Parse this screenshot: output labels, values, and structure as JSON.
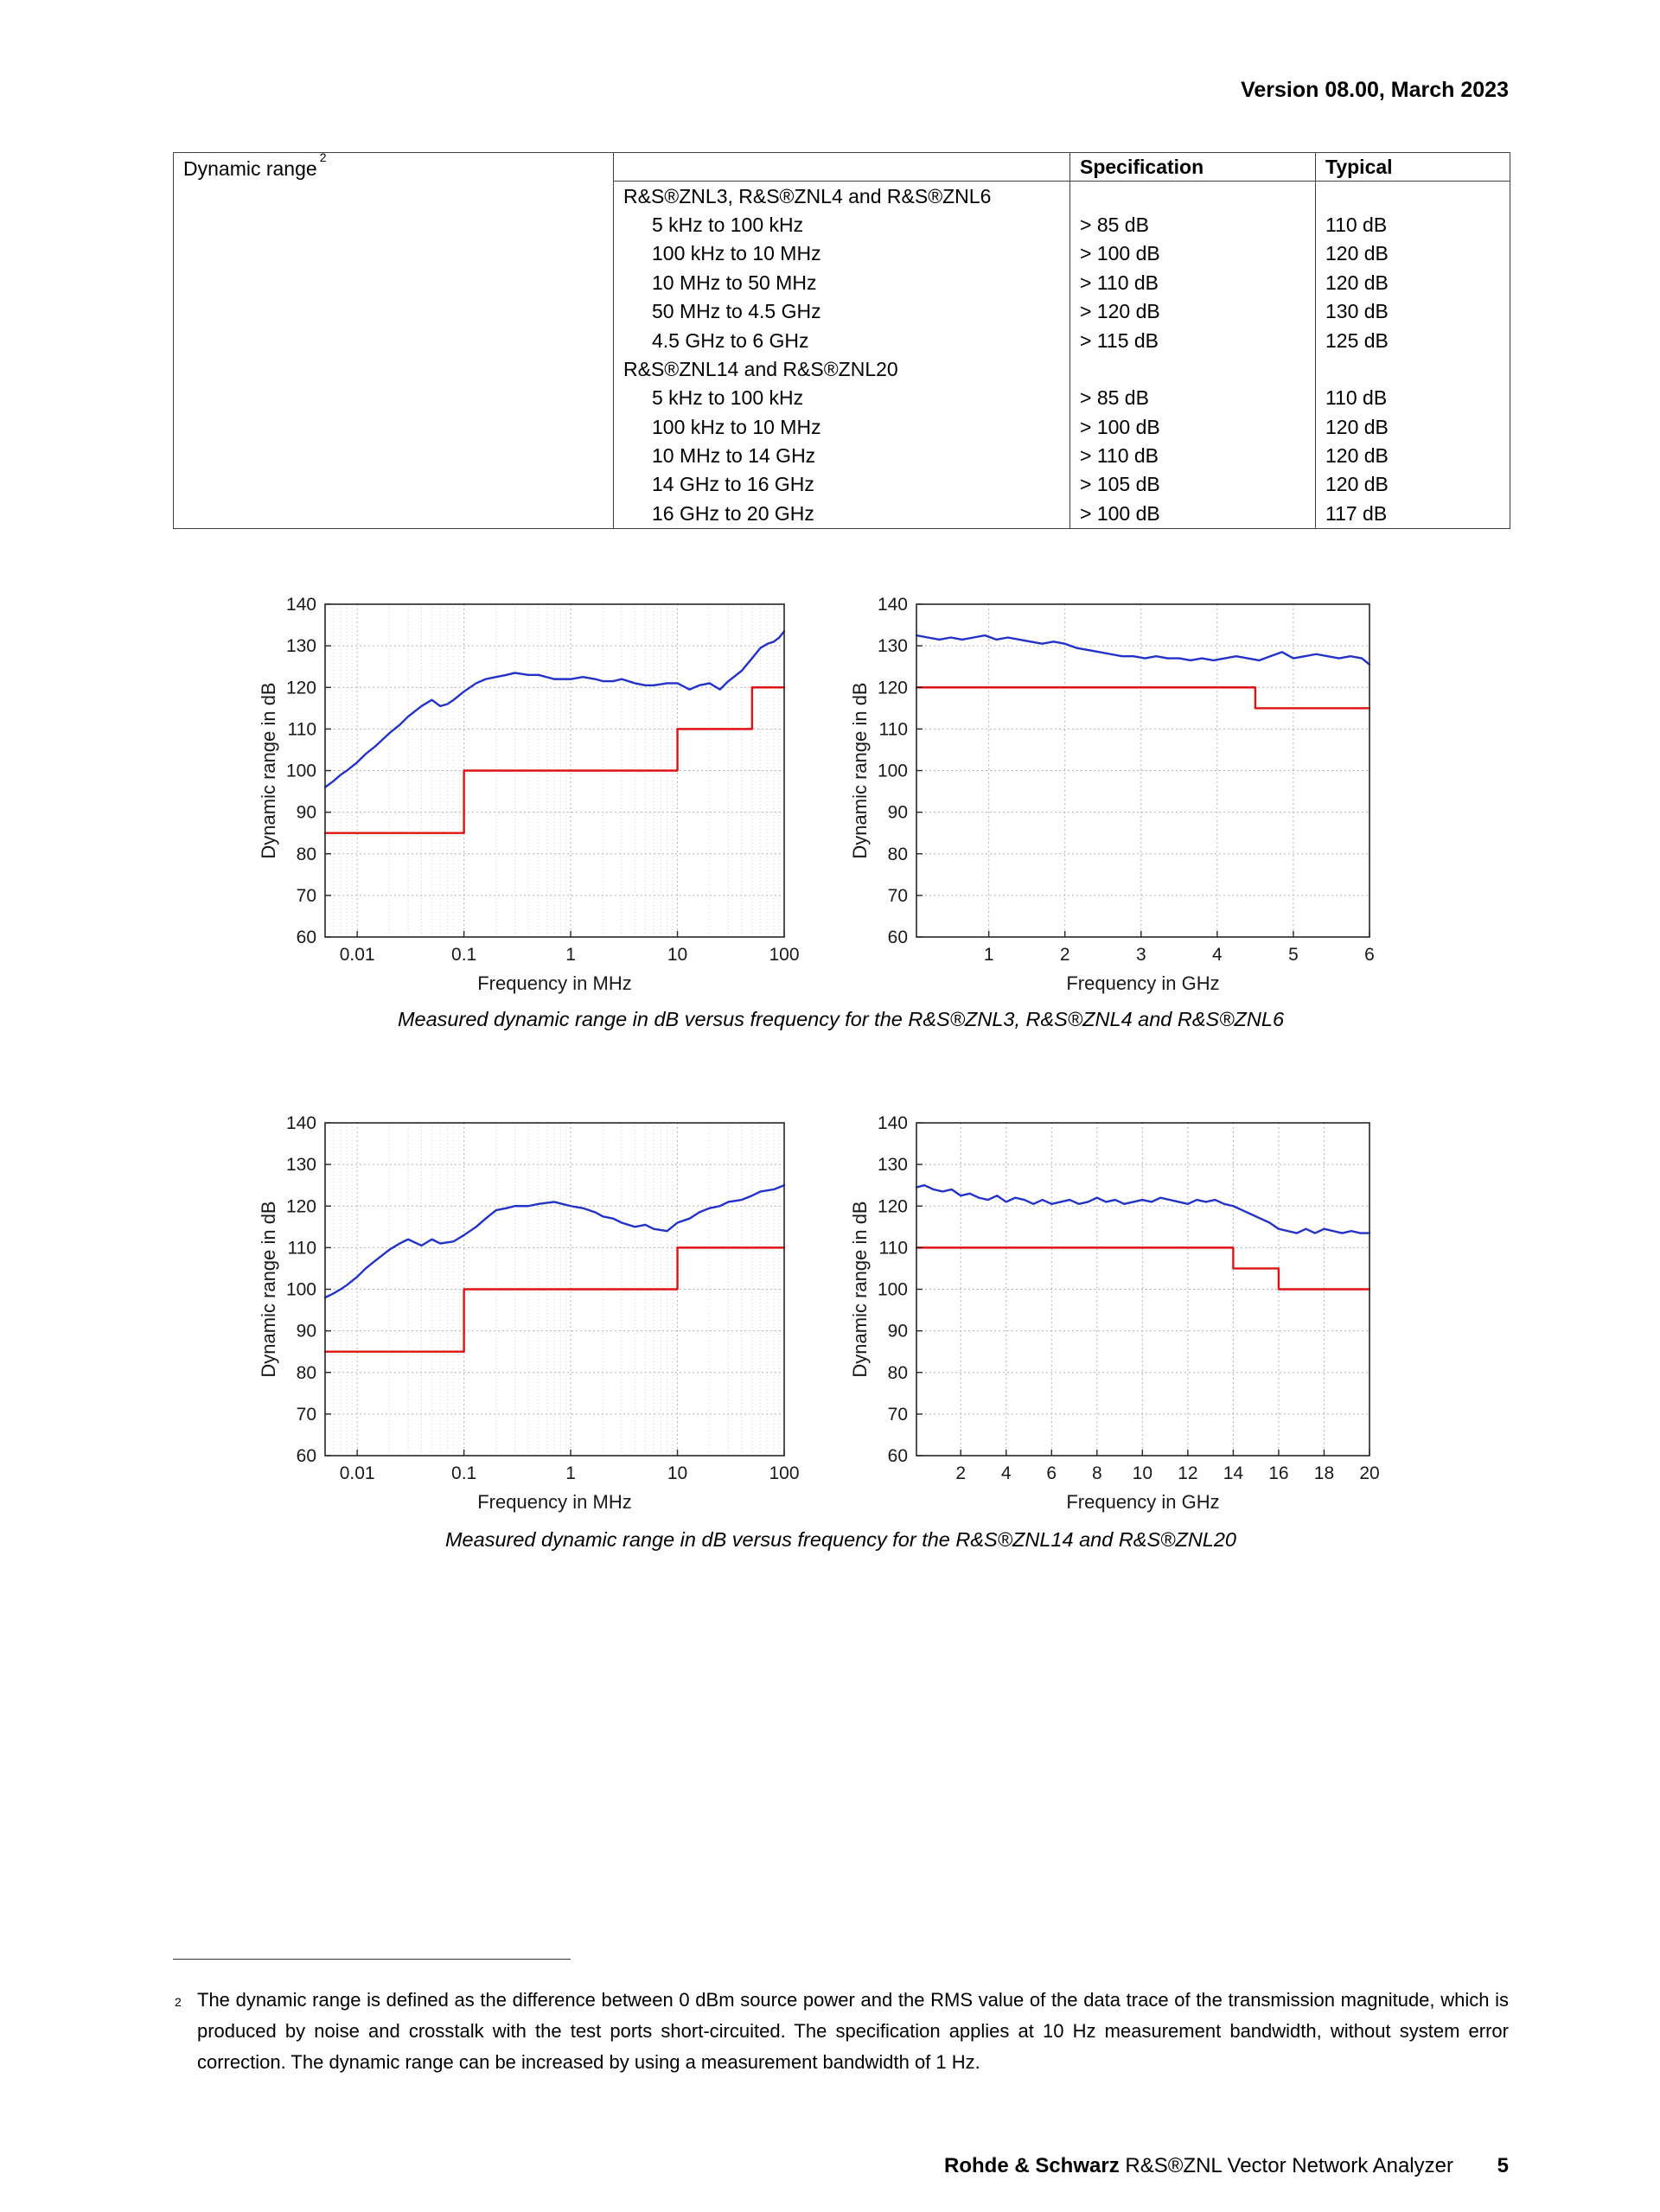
{
  "page": {
    "version_header": "Version 08.00, March 2023",
    "footnote": {
      "marker": "2",
      "text": "The dynamic range is defined as the difference between 0 dBm source power and the RMS value of the data trace of the transmission magnitude, which is produced by noise and crosstalk with the test ports short-circuited. The specification applies at 10 Hz measurement bandwidth, without system error correction. The dynamic range can be increased by using a measurement bandwidth of 1 Hz."
    },
    "footer": {
      "brand": "Rohde & Schwarz",
      "product": "R&S®ZNL Vector Network Analyzer",
      "page_number": "5"
    }
  },
  "spec_table": {
    "row_label": "Dynamic range",
    "row_label_sup": "2",
    "col_headers": {
      "specification": "Specification",
      "typical": "Typical"
    },
    "sections": [
      {
        "header": "R&S®ZNL3, R&S®ZNL4 and R&S®ZNL6",
        "rows": [
          {
            "range": "5 kHz to 100 kHz",
            "spec": "> 85 dB",
            "typical": "110 dB"
          },
          {
            "range": "100 kHz to 10 MHz",
            "spec": "> 100 dB",
            "typical": "120 dB"
          },
          {
            "range": "10 MHz to 50 MHz",
            "spec": "> 110 dB",
            "typical": "120 dB"
          },
          {
            "range": "50 MHz to 4.5 GHz",
            "spec": "> 120 dB",
            "typical": "130 dB"
          },
          {
            "range": "4.5 GHz to 6 GHz",
            "spec": "> 115 dB",
            "typical": "125 dB"
          }
        ]
      },
      {
        "header": "R&S®ZNL14 and R&S®ZNL20",
        "rows": [
          {
            "range": "5 kHz to 100 kHz",
            "spec": "> 85 dB",
            "typical": "110 dB"
          },
          {
            "range": "100 kHz to 10 MHz",
            "spec": "> 100 dB",
            "typical": "120 dB"
          },
          {
            "range": "10 MHz to 14 GHz",
            "spec": "> 110 dB",
            "typical": "120 dB"
          },
          {
            "range": "14 GHz to 16 GHz",
            "spec": "> 105 dB",
            "typical": "120 dB"
          },
          {
            "range": "16 GHz to 20 GHz",
            "spec": "> 100 dB",
            "typical": "117 dB"
          }
        ]
      }
    ]
  },
  "captions": {
    "znl346": "Measured dynamic range in dB versus frequency for the R&S®ZNL3, R&S®ZNL4 and R&S®ZNL6",
    "znl1420": "Measured dynamic range in dB versus frequency for the R&S®ZNL14 and R&S®ZNL20"
  },
  "chart_data": [
    {
      "id": "znl346_mhz",
      "type": "line",
      "xlabel": "Frequency in MHz",
      "ylabel": "Dynamic range in dB",
      "xscale": "log",
      "xlim": [
        0.005,
        100
      ],
      "ylim": [
        60,
        140
      ],
      "xticks": [
        0.01,
        0.1,
        1,
        10,
        100
      ],
      "yticks": [
        60,
        70,
        80,
        90,
        100,
        110,
        120,
        130,
        140
      ],
      "grid": true,
      "series": [
        {
          "name": "specification",
          "color": "#e01212",
          "x": [
            0.005,
            0.1,
            0.1,
            10,
            10,
            50,
            50,
            100
          ],
          "y": [
            85,
            85,
            100,
            100,
            110,
            110,
            120,
            120
          ]
        },
        {
          "name": "measured",
          "color": "#2132c8",
          "x": [
            0.005,
            0.006,
            0.007,
            0.008,
            0.01,
            0.012,
            0.015,
            0.02,
            0.025,
            0.03,
            0.04,
            0.05,
            0.06,
            0.07,
            0.08,
            0.1,
            0.13,
            0.16,
            0.2,
            0.25,
            0.3,
            0.4,
            0.5,
            0.7,
            1,
            1.3,
            1.7,
            2,
            2.5,
            3,
            4,
            5,
            6,
            8,
            10,
            13,
            16,
            20,
            25,
            30,
            40,
            50,
            60,
            70,
            80,
            90,
            100
          ],
          "y": [
            96,
            97.5,
            99,
            100,
            102,
            104,
            106,
            109,
            111,
            113,
            115.5,
            117,
            115.5,
            116,
            117,
            119,
            121,
            122,
            122.5,
            123,
            123.5,
            123,
            123,
            122,
            122,
            122.5,
            122,
            121.5,
            121.5,
            122,
            121,
            120.5,
            120.5,
            121,
            121,
            119.5,
            120.5,
            121,
            119.5,
            121.5,
            124,
            127,
            129.5,
            130.5,
            131,
            132,
            133.5
          ]
        }
      ]
    },
    {
      "id": "znl346_ghz",
      "type": "line",
      "xlabel": "Frequency in GHz",
      "ylabel": "Dynamic range in dB",
      "xscale": "linear",
      "xlim": [
        0.05,
        6
      ],
      "ylim": [
        60,
        140
      ],
      "xticks": [
        1,
        2,
        3,
        4,
        5,
        6
      ],
      "yticks": [
        60,
        70,
        80,
        90,
        100,
        110,
        120,
        130,
        140
      ],
      "grid": true,
      "series": [
        {
          "name": "specification",
          "color": "#e01212",
          "x": [
            0.05,
            4.5,
            4.5,
            6
          ],
          "y": [
            120,
            120,
            115,
            115
          ]
        },
        {
          "name": "measured",
          "color": "#2132c8",
          "x": [
            0.05,
            0.2,
            0.35,
            0.5,
            0.65,
            0.8,
            0.95,
            1.1,
            1.25,
            1.4,
            1.55,
            1.7,
            1.85,
            2.0,
            2.15,
            2.3,
            2.45,
            2.6,
            2.75,
            2.9,
            3.05,
            3.2,
            3.35,
            3.5,
            3.65,
            3.8,
            3.95,
            4.1,
            4.25,
            4.4,
            4.55,
            4.7,
            4.85,
            5.0,
            5.15,
            5.3,
            5.45,
            5.6,
            5.75,
            5.9,
            6.0
          ],
          "y": [
            132.5,
            132,
            131.5,
            132,
            131.5,
            132,
            132.5,
            131.5,
            132,
            131.5,
            131,
            130.5,
            131,
            130.5,
            129.5,
            129,
            128.5,
            128,
            127.5,
            127.5,
            127,
            127.5,
            127,
            127,
            126.5,
            127,
            126.5,
            127,
            127.5,
            127,
            126.5,
            127.5,
            128.5,
            127,
            127.5,
            128,
            127.5,
            127,
            127.5,
            127,
            125.5
          ]
        }
      ]
    },
    {
      "id": "znl1420_mhz",
      "type": "line",
      "xlabel": "Frequency in MHz",
      "ylabel": "Dynamic range in dB",
      "xscale": "log",
      "xlim": [
        0.005,
        100
      ],
      "ylim": [
        60,
        140
      ],
      "xticks": [
        0.01,
        0.1,
        1,
        10,
        100
      ],
      "yticks": [
        60,
        70,
        80,
        90,
        100,
        110,
        120,
        130,
        140
      ],
      "grid": true,
      "series": [
        {
          "name": "specification",
          "color": "#e01212",
          "x": [
            0.005,
            0.1,
            0.1,
            10,
            10,
            100
          ],
          "y": [
            85,
            85,
            100,
            100,
            110,
            110
          ]
        },
        {
          "name": "measured",
          "color": "#2132c8",
          "x": [
            0.005,
            0.006,
            0.007,
            0.008,
            0.01,
            0.012,
            0.015,
            0.02,
            0.025,
            0.03,
            0.04,
            0.05,
            0.06,
            0.08,
            0.1,
            0.13,
            0.16,
            0.2,
            0.25,
            0.3,
            0.4,
            0.5,
            0.7,
            1,
            1.3,
            1.7,
            2,
            2.5,
            3,
            4,
            5,
            6,
            8,
            10,
            13,
            16,
            20,
            25,
            30,
            40,
            50,
            60,
            80,
            100
          ],
          "y": [
            98,
            99,
            100,
            101,
            103,
            105,
            107,
            109.5,
            111,
            112,
            110.5,
            112,
            111,
            111.5,
            113,
            115,
            117,
            119,
            119.5,
            120,
            120,
            120.5,
            121,
            120,
            119.5,
            118.5,
            117.5,
            117,
            116,
            115,
            115.5,
            114.5,
            114,
            116,
            117,
            118.5,
            119.5,
            120,
            121,
            121.5,
            122.5,
            123.5,
            124,
            125
          ]
        }
      ]
    },
    {
      "id": "znl1420_ghz",
      "type": "line",
      "xlabel": "Frequency in GHz",
      "ylabel": "Dynamic range in dB",
      "xscale": "linear",
      "xlim": [
        0.05,
        20
      ],
      "ylim": [
        60,
        140
      ],
      "xticks": [
        2,
        4,
        6,
        8,
        10,
        12,
        14,
        16,
        18,
        20
      ],
      "yticks": [
        60,
        70,
        80,
        90,
        100,
        110,
        120,
        130,
        140
      ],
      "grid": true,
      "series": [
        {
          "name": "specification",
          "color": "#e01212",
          "x": [
            0.05,
            14,
            14,
            16,
            16,
            20
          ],
          "y": [
            110,
            110,
            105,
            105,
            100,
            100
          ]
        },
        {
          "name": "measured",
          "color": "#2132c8",
          "x": [
            0.05,
            0.4,
            0.8,
            1.2,
            1.6,
            2.0,
            2.4,
            2.8,
            3.2,
            3.6,
            4.0,
            4.4,
            4.8,
            5.2,
            5.6,
            6.0,
            6.4,
            6.8,
            7.2,
            7.6,
            8.0,
            8.4,
            8.8,
            9.2,
            9.6,
            10.0,
            10.4,
            10.8,
            11.2,
            11.6,
            12.0,
            12.4,
            12.8,
            13.2,
            13.6,
            14.0,
            14.4,
            14.8,
            15.2,
            15.6,
            16.0,
            16.4,
            16.8,
            17.2,
            17.6,
            18.0,
            18.4,
            18.8,
            19.2,
            19.6,
            20.0
          ],
          "y": [
            124.5,
            125,
            124,
            123.5,
            124,
            122.5,
            123,
            122,
            121.5,
            122.5,
            121,
            122,
            121.5,
            120.5,
            121.5,
            120.5,
            121,
            121.5,
            120.5,
            121,
            122,
            121,
            121.5,
            120.5,
            121,
            121.5,
            121,
            122,
            121.5,
            121,
            120.5,
            121.5,
            121,
            121.5,
            120.5,
            120,
            119,
            118,
            117,
            116,
            114.5,
            114,
            113.5,
            114.5,
            113.5,
            114.5,
            114,
            113.5,
            114,
            113.5,
            113.5
          ]
        }
      ]
    }
  ]
}
